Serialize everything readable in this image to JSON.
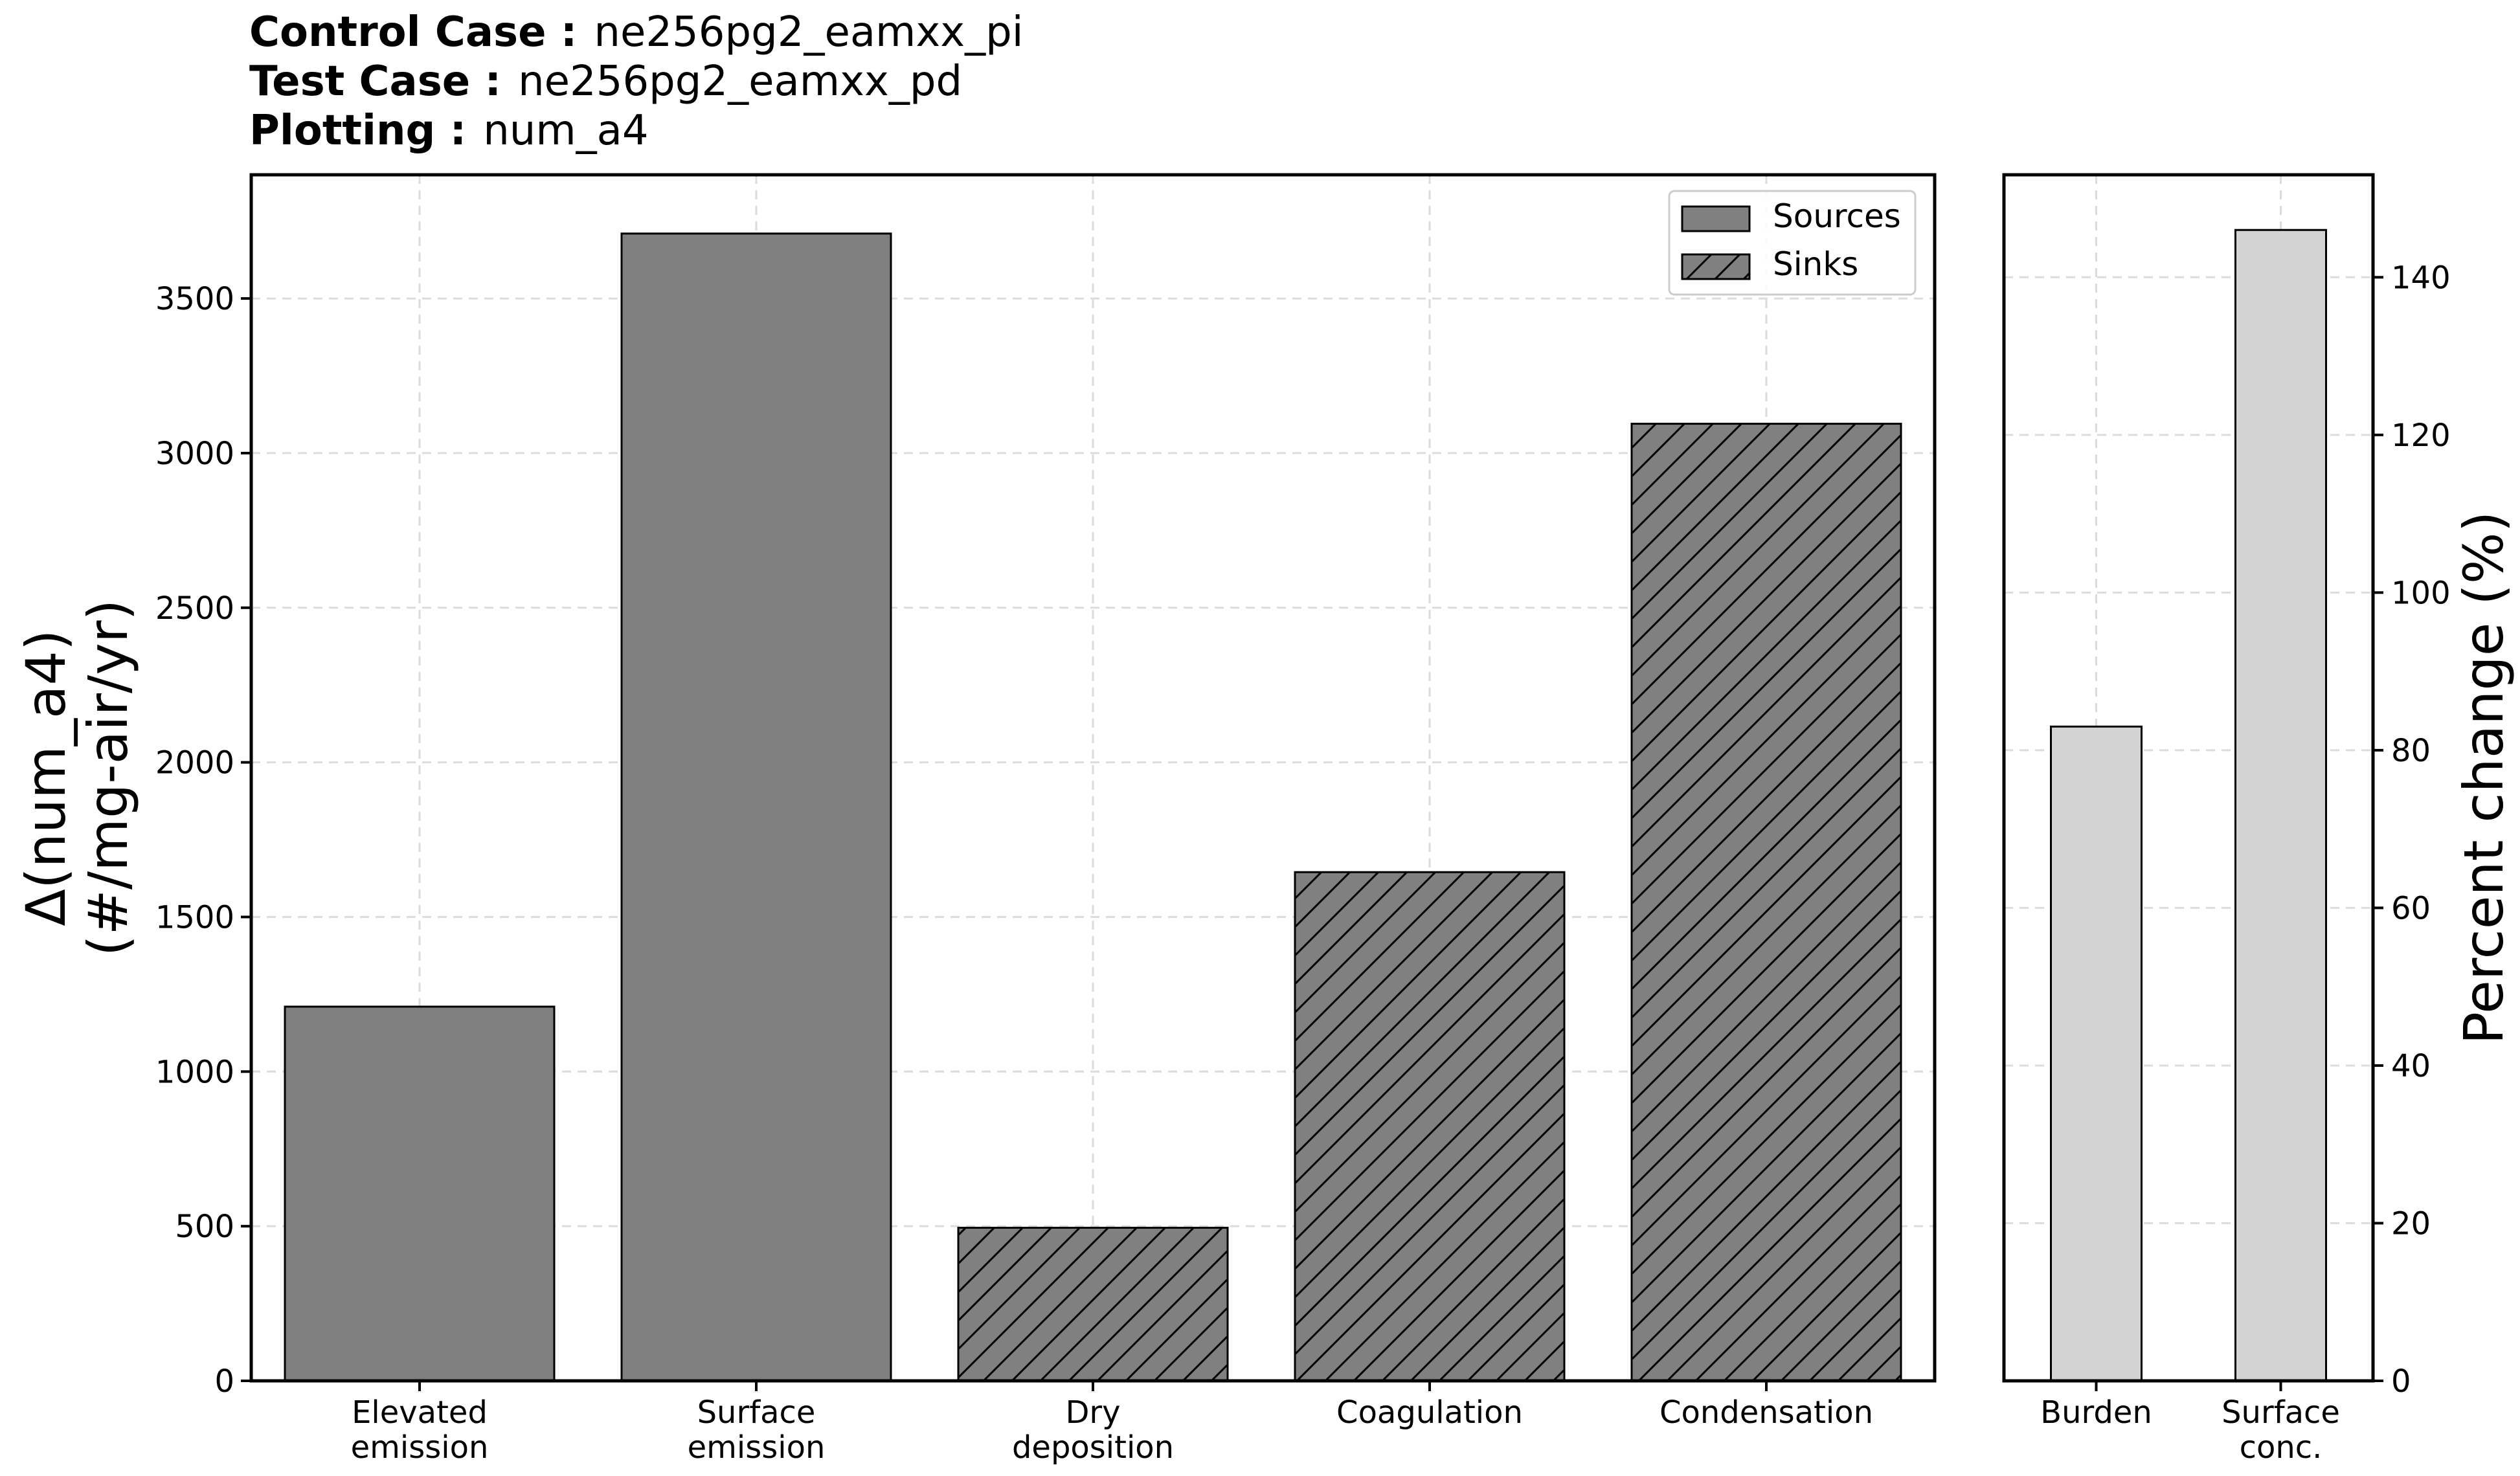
{
  "header": {
    "control_label": "Control Case :",
    "control_value": "ne256pg2_eamxx_pi",
    "test_label": "Test Case :",
    "test_value": "ne256pg2_eamxx_pd",
    "plot_label": "Plotting :",
    "plot_value": "num_a4"
  },
  "chart_data": [
    {
      "type": "bar",
      "categories": [
        "Elevated\nemission",
        "Surface\nemission",
        "Dry\ndeposition",
        "Coagulation",
        "Condensation"
      ],
      "values": [
        1210,
        3710,
        495,
        1645,
        3095
      ],
      "kinds": [
        "source",
        "source",
        "sink",
        "sink",
        "sink"
      ],
      "ylabel_line1": "Δ(num_a4)",
      "ylabel_line2": "(#/mg-air/yr)",
      "ylim": [
        0,
        3900
      ],
      "yticks": [
        0,
        500,
        1000,
        1500,
        2000,
        2500,
        3000,
        3500
      ],
      "grid": true,
      "legend": {
        "position": "top-right",
        "entries": [
          "Sources",
          "Sinks"
        ]
      },
      "bar_color": "#808080"
    },
    {
      "type": "bar",
      "categories": [
        "Burden",
        "Surface\nconc."
      ],
      "values": [
        83,
        146
      ],
      "ylabel": "Percent change (%)",
      "ylim": [
        0,
        153
      ],
      "yticks": [
        0,
        20,
        40,
        60,
        80,
        100,
        120,
        140
      ],
      "axis_side": "right",
      "grid": true,
      "bar_color": "#d3d3d3"
    }
  ]
}
